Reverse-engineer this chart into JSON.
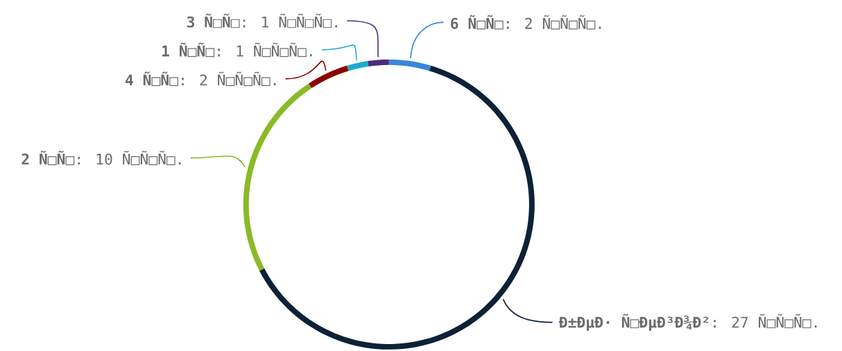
{
  "chart_data": {
    "type": "donut",
    "categories": [
      "**6 Ñ□Ñ□**: 2 Ñ□Ñ□Ñ□.",
      "**Ð±ÐµÐ· Ñ□ÐµÐ³Ð¾Ð²**: 27 Ñ□Ñ□Ñ□.",
      "**2 Ñ□Ñ□**: 10 Ñ□Ñ□Ñ□.",
      "**4 Ñ□Ñ□**: 2 Ñ□Ñ□Ñ□.",
      "**1 Ñ□Ñ□**: 1 Ñ□Ñ□Ñ□.",
      "**3 Ñ□Ñ□**: 1 Ñ□Ñ□Ñ□."
    ],
    "values": [
      2,
      27,
      10,
      2,
      1,
      1
    ],
    "colors": [
      "#3a86db",
      "#0d2137",
      "#8aba27",
      "#8b0000",
      "#1eaacf",
      "#4b2d7a"
    ]
  }
}
